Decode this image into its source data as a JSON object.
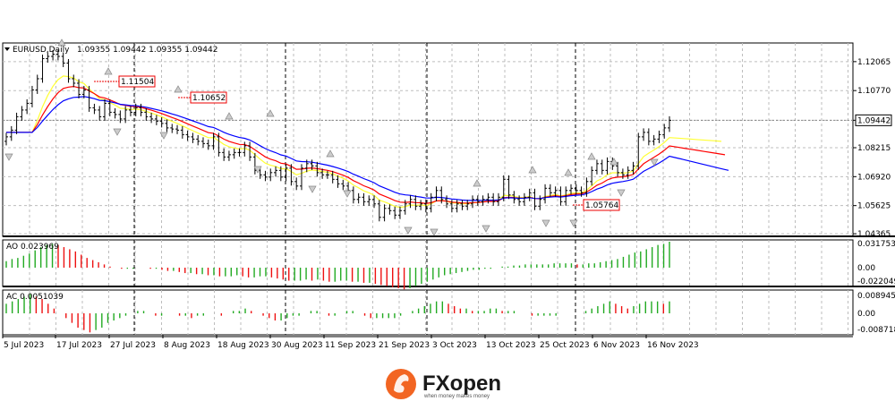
{
  "header": {
    "symbol_label": "EURUSD,Daily",
    "ohlc": "1.09355 1.09442 1.09355 1.09442"
  },
  "indicators": {
    "ao_label": "AO 0.023969",
    "ac_label": "AC 0.0051039"
  },
  "chart_data": [
    {
      "type": "candlestick",
      "title": "EURUSD,Daily",
      "y_ticks": [
        "1.12065",
        "1.10770",
        "1.09442",
        "1.08215",
        "1.06920",
        "1.05625",
        "1.04365"
      ],
      "current_price": "1.09442",
      "annotations": [
        "1.11504",
        "1.10652",
        "1.05764"
      ],
      "x_ticks": [
        "5 Jul 2023",
        "17 Jul 2023",
        "27 Jul 2023",
        "8 Aug 2023",
        "18 Aug 2023",
        "30 Aug 2023",
        "11 Sep 2023",
        "21 Sep 2023",
        "3 Oct 2023",
        "13 Oct 2023",
        "25 Oct 2023",
        "6 Nov 2023",
        "16 Nov 2023"
      ],
      "close": [
        1.087,
        1.09,
        1.096,
        1.099,
        1.102,
        1.108,
        1.113,
        1.122,
        1.123,
        1.124,
        1.123,
        1.12,
        1.113,
        1.111,
        1.106,
        1.108,
        1.1,
        1.099,
        1.096,
        1.102,
        1.098,
        1.097,
        1.095,
        1.099,
        1.098,
        1.1,
        1.098,
        1.096,
        1.095,
        1.094,
        1.093,
        1.091,
        1.0905,
        1.09,
        1.088,
        1.087,
        1.086,
        1.085,
        1.084,
        1.083,
        1.087,
        1.08,
        1.078,
        1.079,
        1.08,
        1.08,
        1.083,
        1.078,
        1.072,
        1.07,
        1.069,
        1.071,
        1.072,
        1.069,
        1.073,
        1.067,
        1.065,
        1.073,
        1.075,
        1.074,
        1.071,
        1.07,
        1.07,
        1.068,
        1.066,
        1.065,
        1.063,
        1.059,
        1.06,
        1.058,
        1.059,
        1.057,
        1.051,
        1.055,
        1.054,
        1.052,
        1.054,
        1.057,
        1.059,
        1.056,
        1.057,
        1.055,
        1.06,
        1.063,
        1.059,
        1.057,
        1.055,
        1.057,
        1.056,
        1.057,
        1.059,
        1.058,
        1.059,
        1.06,
        1.058,
        1.06,
        1.068,
        1.061,
        1.059,
        1.058,
        1.06,
        1.062,
        1.056,
        1.059,
        1.064,
        1.062,
        1.063,
        1.058,
        1.063,
        1.064,
        1.063,
        1.062,
        1.067,
        1.072,
        1.075,
        1.072,
        1.076,
        1.074,
        1.071,
        1.07,
        1.072,
        1.074,
        1.087,
        1.089,
        1.085,
        1.086,
        1.088,
        1.091,
        1.0944
      ],
      "ma_fast_end": 1.085,
      "ma_mid_end": 1.079,
      "ma_slow_end": 1.072,
      "series_colors": {
        "fast": "#ffff33",
        "mid": "#ff0000",
        "slow": "#0000ff"
      }
    },
    {
      "type": "bar",
      "title": "AO 0.023969",
      "y_ticks": [
        "0.031753",
        "0.00",
        "-0.022049"
      ],
      "values": [
        0.006,
        0.008,
        0.009,
        0.011,
        0.013,
        0.016,
        0.019,
        0.021,
        0.022,
        0.021,
        0.019,
        0.017,
        0.015,
        0.012,
        0.009,
        0.007,
        0.005,
        0.003,
        0.001,
        0.0,
        -0.001,
        -0.001,
        -0.001,
        0.0,
        0.0,
        -0.001,
        -0.001,
        -0.002,
        -0.003,
        -0.003,
        -0.004,
        -0.005,
        -0.005,
        -0.006,
        -0.006,
        -0.007,
        -0.007,
        -0.008,
        -0.008,
        -0.008,
        -0.007,
        -0.008,
        -0.009,
        -0.009,
        -0.008,
        -0.008,
        -0.009,
        -0.01,
        -0.011,
        -0.012,
        -0.012,
        -0.012,
        -0.011,
        -0.012,
        -0.011,
        -0.012,
        -0.013,
        -0.013,
        -0.012,
        -0.012,
        -0.013,
        -0.013,
        -0.014,
        -0.014,
        -0.015,
        -0.016,
        -0.017,
        -0.018,
        -0.019,
        -0.02,
        -0.019,
        -0.017,
        -0.015,
        -0.013,
        -0.011,
        -0.009,
        -0.007,
        -0.006,
        -0.005,
        -0.004,
        -0.003,
        -0.002,
        -0.002,
        -0.001,
        -0.001,
        0.0,
        0.001,
        0.001,
        0.002,
        0.002,
        0.003,
        0.003,
        0.003,
        0.003,
        0.003,
        0.004,
        0.004,
        0.004,
        0.004,
        0.003,
        0.003,
        0.004,
        0.004,
        0.005,
        0.006,
        0.007,
        0.008,
        0.01,
        0.012,
        0.014,
        0.015,
        0.017,
        0.019,
        0.021,
        0.022,
        0.024
      ]
    },
    {
      "type": "bar",
      "title": "AC 0.0051039",
      "y_ticks": [
        "0.0089451",
        "0.00",
        "-0.008718"
      ],
      "values": [
        0.004,
        0.005,
        0.006,
        0.007,
        0.008,
        0.007,
        0.006,
        0.004,
        0.002,
        0.0,
        -0.002,
        -0.004,
        -0.006,
        -0.007,
        -0.008,
        -0.007,
        -0.006,
        -0.004,
        -0.003,
        -0.002,
        -0.001,
        0.0,
        0.001,
        0.001,
        0.0,
        -0.001,
        -0.001,
        0.0,
        0.0,
        -0.001,
        -0.001,
        -0.002,
        -0.001,
        -0.001,
        0.0,
        0.0,
        -0.001,
        0.0,
        0.001,
        0.001,
        0.002,
        0.001,
        0.0,
        -0.001,
        -0.002,
        -0.003,
        -0.003,
        -0.002,
        -0.001,
        -0.001,
        0.0,
        0.001,
        0.001,
        0.0,
        -0.001,
        -0.001,
        0.0,
        0.001,
        0.001,
        0.0,
        -0.001,
        -0.002,
        -0.002,
        -0.002,
        -0.002,
        -0.002,
        -0.001,
        0.0,
        0.001,
        0.002,
        0.003,
        0.004,
        0.005,
        0.005,
        0.004,
        0.003,
        0.002,
        0.002,
        0.001,
        0.001,
        0.001,
        0.002,
        0.002,
        0.001,
        0.001,
        0.001,
        0.0,
        0.0,
        -0.001,
        -0.001,
        -0.001,
        -0.001,
        -0.001,
        0.0,
        0.0,
        0.0,
        0.0,
        0.001,
        0.002,
        0.003,
        0.004,
        0.005,
        0.004,
        0.003,
        0.002,
        0.003,
        0.004,
        0.005,
        0.005,
        0.005,
        0.004,
        0.005
      ]
    }
  ],
  "brand": {
    "name": "FXopen",
    "tagline": "when money makes money",
    "color": "#f26522"
  }
}
